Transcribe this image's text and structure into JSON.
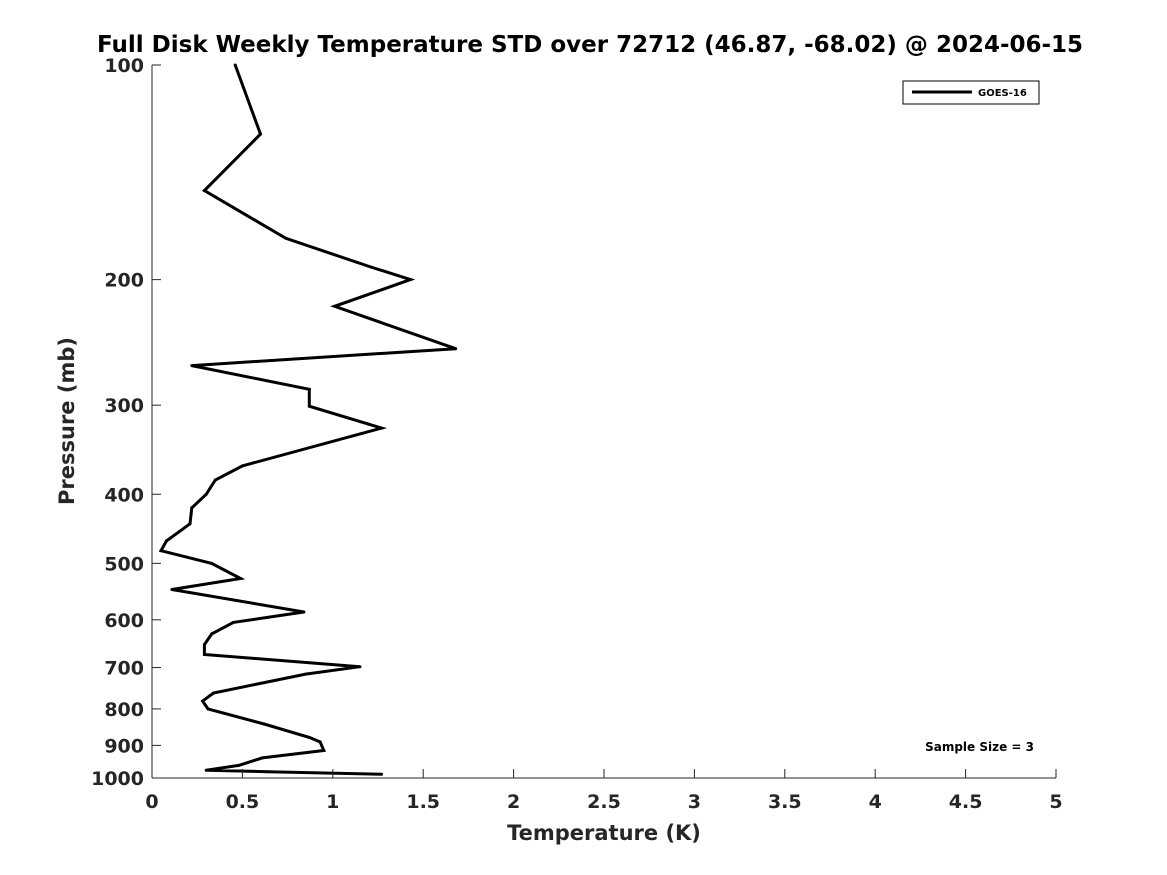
{
  "chart_data": {
    "type": "line",
    "title": "Full Disk Weekly Temperature STD over 72712 (46.87, -68.02) @ 2024-06-15",
    "xlabel": "Temperature (K)",
    "ylabel": "Pressure (mb)",
    "xlim": [
      0,
      5
    ],
    "ylim": [
      100,
      1000
    ],
    "yscale": "log",
    "y_reversed": true,
    "grid": false,
    "legend_position": "top-right",
    "x_ticks": [
      "0",
      "0.5",
      "1",
      "1.5",
      "2",
      "2.5",
      "3",
      "3.5",
      "4",
      "4.5",
      "5"
    ],
    "y_ticks": [
      "100",
      "200",
      "300",
      "400",
      "500",
      "600",
      "700",
      "800",
      "900",
      "1000"
    ],
    "series": [
      {
        "name": "GOES-16",
        "color": "#000000",
        "points": [
          [
            0.46,
            100
          ],
          [
            0.6,
            125
          ],
          [
            0.29,
            150
          ],
          [
            0.74,
            175
          ],
          [
            1.21,
            192
          ],
          [
            1.43,
            200
          ],
          [
            1.01,
            218
          ],
          [
            1.68,
            250
          ],
          [
            0.22,
            264
          ],
          [
            0.87,
            285
          ],
          [
            0.87,
            301
          ],
          [
            1.27,
            323
          ],
          [
            0.5,
            365
          ],
          [
            0.35,
            382
          ],
          [
            0.3,
            400
          ],
          [
            0.22,
            418
          ],
          [
            0.21,
            440
          ],
          [
            0.08,
            465
          ],
          [
            0.05,
            480
          ],
          [
            0.33,
            500
          ],
          [
            0.49,
            525
          ],
          [
            0.11,
            544
          ],
          [
            0.84,
            585
          ],
          [
            0.45,
            605
          ],
          [
            0.33,
            628
          ],
          [
            0.29,
            650
          ],
          [
            0.29,
            671
          ],
          [
            1.15,
            698
          ],
          [
            0.85,
            715
          ],
          [
            0.34,
            760
          ],
          [
            0.28,
            780
          ],
          [
            0.31,
            800
          ],
          [
            0.62,
            840
          ],
          [
            0.87,
            877
          ],
          [
            0.93,
            890
          ],
          [
            0.95,
            915
          ],
          [
            0.61,
            937
          ],
          [
            0.48,
            960
          ],
          [
            0.3,
            975
          ],
          [
            0.64,
            980
          ],
          [
            1.27,
            988
          ]
        ]
      }
    ],
    "annotation": "Sample Size = 3"
  }
}
